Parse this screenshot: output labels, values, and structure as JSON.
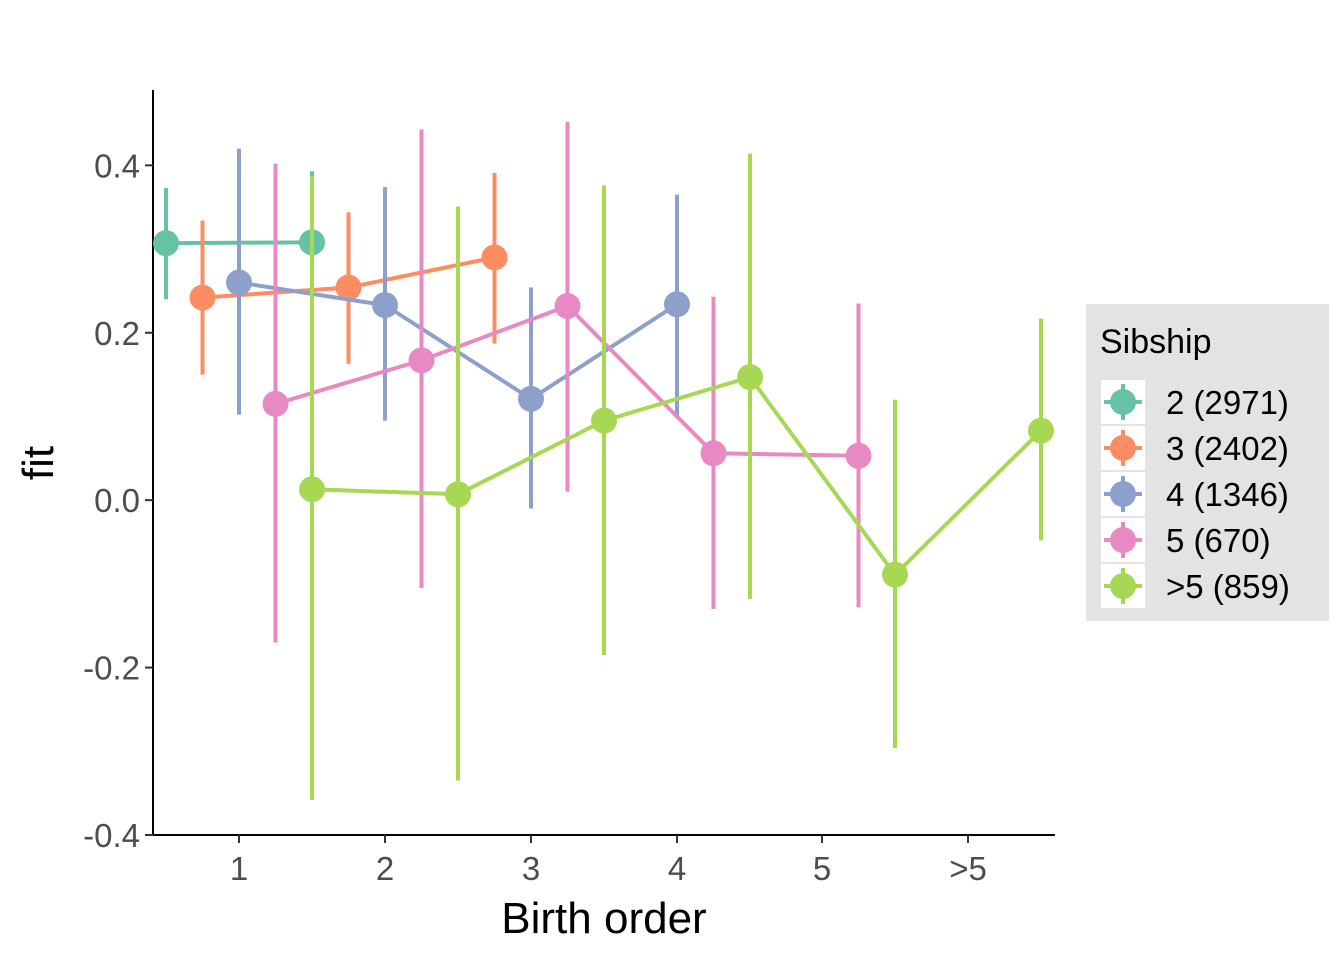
{
  "chart_data": {
    "type": "scatter",
    "xlabel": "Birth order",
    "ylabel": "fit",
    "x_categories": [
      "1",
      "2",
      "3",
      "4",
      "5",
      ">5"
    ],
    "y_ticks": [
      "-0.4",
      "-0.2",
      "0.0",
      "0.2",
      "0.4"
    ],
    "ylim": [
      -0.4,
      0.49
    ],
    "grid": false,
    "legend_title": "Sibship",
    "legend_position": "right",
    "series": [
      {
        "name": "2 (2971)",
        "color": "#66C2A5",
        "x": [
          "1",
          "2"
        ],
        "fit": [
          0.307,
          0.308
        ],
        "lower": [
          0.24,
          0.222
        ],
        "upper": [
          0.373,
          0.393
        ]
      },
      {
        "name": "3 (2402)",
        "color": "#FC8D62",
        "x": [
          "1",
          "2",
          "3"
        ],
        "fit": [
          0.242,
          0.254,
          0.29
        ],
        "lower": [
          0.15,
          0.163,
          0.187
        ],
        "upper": [
          0.334,
          0.344,
          0.391
        ]
      },
      {
        "name": "4 (1346)",
        "color": "#8DA0CB",
        "x": [
          "1",
          "2",
          "3",
          "4"
        ],
        "fit": [
          0.26,
          0.233,
          0.121,
          0.234
        ],
        "lower": [
          0.102,
          0.095,
          -0.01,
          0.101
        ],
        "upper": [
          0.42,
          0.374,
          0.254,
          0.365
        ]
      },
      {
        "name": "5 (670)",
        "color": "#E78AC3",
        "x": [
          "1",
          "2",
          "3",
          "4",
          "5"
        ],
        "fit": [
          0.115,
          0.167,
          0.232,
          0.056,
          0.053
        ],
        "lower": [
          -0.17,
          -0.105,
          0.01,
          -0.13,
          -0.128
        ],
        "upper": [
          0.402,
          0.443,
          0.452,
          0.243,
          0.235
        ]
      },
      {
        "name": ">5 (859)",
        "color": "#A6D854",
        "x": [
          "1",
          "2",
          "3",
          "4",
          "5",
          ">5"
        ],
        "fit": [
          0.013,
          0.007,
          0.095,
          0.147,
          -0.089,
          0.083
        ],
        "lower": [
          -0.358,
          -0.335,
          -0.185,
          -0.118,
          -0.296,
          -0.048
        ],
        "upper": [
          0.387,
          0.351,
          0.376,
          0.414,
          0.12,
          0.217
        ]
      }
    ]
  }
}
